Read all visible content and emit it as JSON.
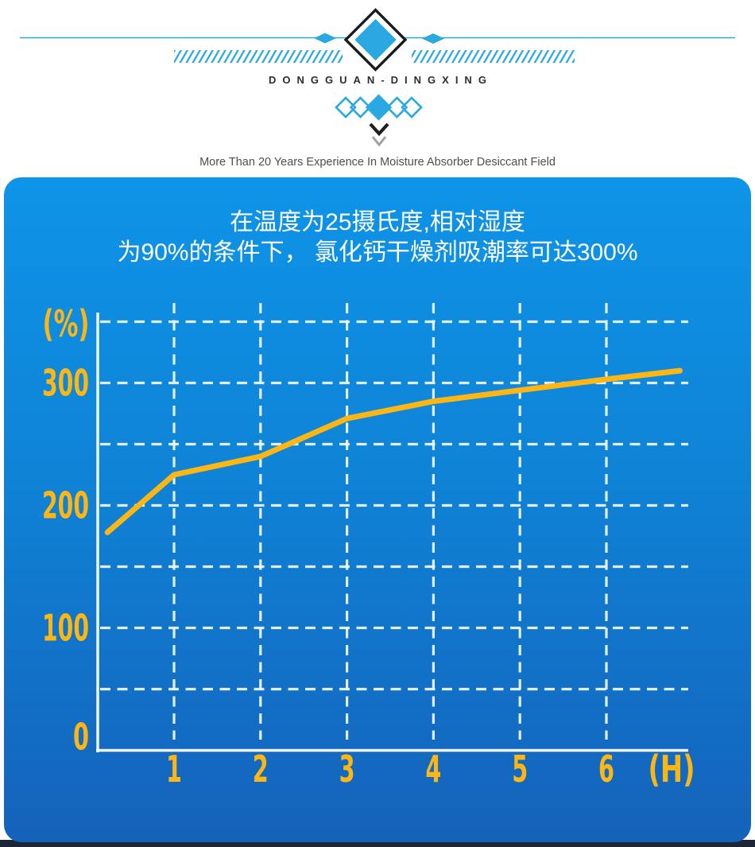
{
  "header": {
    "brand": "DONGGUAN-DINGXING",
    "tagline": "More Than 20 Years Experience In Moisture Absorber Desiccant Field",
    "icons": {
      "brand_diamond": "large blue diamond with black outline",
      "side_diamonds": "small elongated blue diamonds on horizontal rule",
      "hatch_stripes": "blue diagonal hatch bands",
      "diamond_chain": "two outlined diamonds, one filled diamond, two outlined diamonds",
      "chevron_dark": "dark V chevron pointing down",
      "chevron_gray": "gray V chevron pointing down"
    }
  },
  "panel": {
    "title_line1": "在温度为25摄氏度,相对湿度",
    "title_line2": "为90%的条件下， 氯化钙干燥剂吸潮率可达300%"
  },
  "colors": {
    "accent_blue": "#29a8e1",
    "panel_gradient_top": "#0e94e8",
    "panel_gradient_bottom": "#1462ba",
    "line_yellow": "#fdb614",
    "grid_white": "#eff4f8",
    "footer_dark": "#1c2634"
  },
  "chart_data": {
    "type": "line",
    "title": "在温度为25摄氏度,相对湿度为90%的条件下， 氯化钙干燥剂吸潮率可达300%",
    "xlabel": "(H)",
    "ylabel": "(%)",
    "xlim": [
      0,
      7
    ],
    "ylim": [
      0,
      360
    ],
    "grid": "dashed",
    "legend": "none",
    "x_ticks": [
      1,
      2,
      3,
      4,
      5,
      6
    ],
    "y_ticks": [
      0,
      100,
      200,
      300
    ],
    "y_gridlines": [
      50,
      100,
      150,
      200,
      250,
      300,
      350
    ],
    "x_gridlines": [
      1,
      2,
      3,
      4,
      5,
      6
    ],
    "line_color": "#fdb614",
    "series": [
      {
        "name": "氯化钙干燥剂吸潮率",
        "x": [
          0.23,
          1,
          2,
          3,
          4,
          5,
          6,
          6.85
        ],
        "y": [
          178,
          225,
          240,
          271,
          285,
          294,
          303,
          310
        ]
      }
    ]
  }
}
